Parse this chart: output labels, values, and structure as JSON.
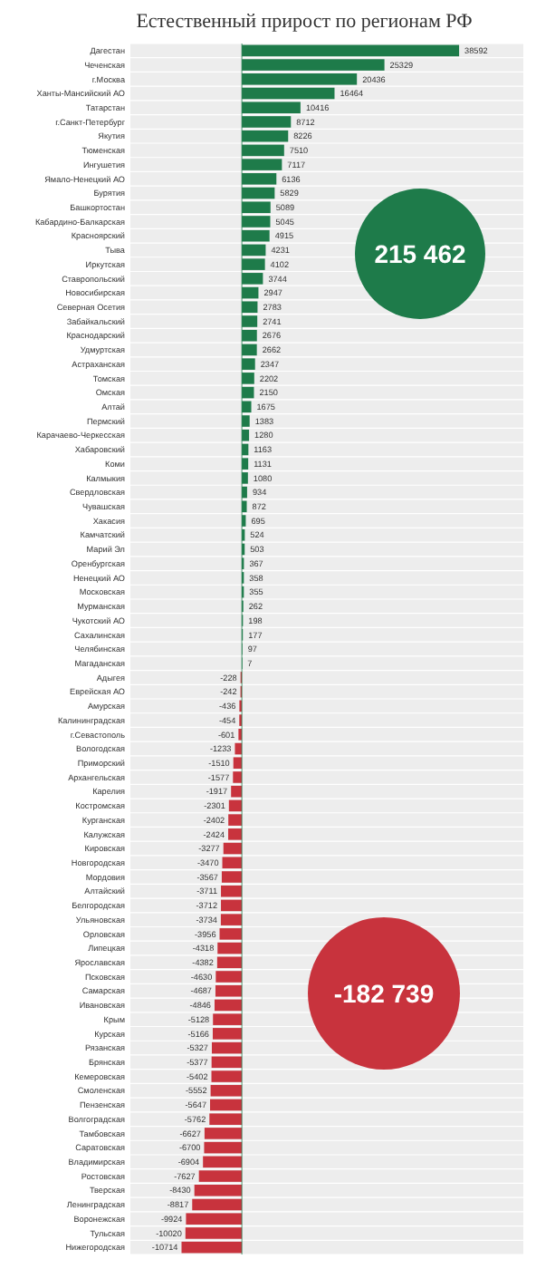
{
  "chart_data": {
    "type": "bar",
    "orientation": "horizontal",
    "title": "Естественный прирост по регионам РФ",
    "categories": [
      "Дагестан",
      "Чеченская",
      "г.Москва",
      "Ханты-Мансийский АО",
      "Татарстан",
      "г.Санкт-Петербург",
      "Якутия",
      "Тюменская",
      "Ингушетия",
      "Ямало-Ненецкий АО",
      "Бурятия",
      "Башкортостан",
      "Кабардино-Балкарская",
      "Красноярский",
      "Тыва",
      "Иркутская",
      "Ставропольский",
      "Новосибирская",
      "Северная Осетия",
      "Забайкальский",
      "Краснодарский",
      "Удмуртская",
      "Астраханская",
      "Томская",
      "Омская",
      "Алтай",
      "Пермский",
      "Карачаево-Черкесская",
      "Хабаровский",
      "Коми",
      "Калмыкия",
      "Свердловская",
      "Чувашская",
      "Хакасия",
      "Камчатский",
      "Марий Эл",
      "Оренбургская",
      "Ненецкий АО",
      "Московская",
      "Мурманская",
      "Чукотский АО",
      "Сахалинская",
      "Челябинская",
      "Магаданская",
      "Адыгея",
      "Еврейская АО",
      "Амурская",
      "Калининградская",
      "г.Севастополь",
      "Вологодская",
      "Приморский",
      "Архангельская",
      "Карелия",
      "Костромская",
      "Курганская",
      "Калужская",
      "Кировская",
      "Новгородская",
      "Мордовия",
      "Алтайский",
      "Белгородская",
      "Ульяновская",
      "Орловская",
      "Липецкая",
      "Ярославская",
      "Псковская",
      "Самарская",
      "Ивановская",
      "Крым",
      "Курская",
      "Рязанская",
      "Брянская",
      "Кемеровская",
      "Смоленская",
      "Пензенская",
      "Волгоградская",
      "Тамбовская",
      "Саратовская",
      "Владимирская",
      "Ростовская",
      "Тверская",
      "Ленинградская",
      "Воронежская",
      "Тульская",
      "Нижегородская"
    ],
    "values": [
      38592,
      25329,
      20436,
      16464,
      10416,
      8712,
      8226,
      7510,
      7117,
      6136,
      5829,
      5089,
      5045,
      4915,
      4231,
      4102,
      3744,
      2947,
      2783,
      2741,
      2676,
      2662,
      2347,
      2202,
      2150,
      1675,
      1383,
      1280,
      1163,
      1131,
      1080,
      934,
      872,
      695,
      524,
      503,
      367,
      358,
      355,
      262,
      198,
      177,
      97,
      7,
      -228,
      -242,
      -436,
      -454,
      -601,
      -1233,
      -1510,
      -1577,
      -1917,
      -2301,
      -2402,
      -2424,
      -3277,
      -3470,
      -3567,
      -3711,
      -3712,
      -3734,
      -3956,
      -4318,
      -4382,
      -4630,
      -4687,
      -4846,
      -5128,
      -5166,
      -5327,
      -5377,
      -5402,
      -5552,
      -5647,
      -5762,
      -6627,
      -6700,
      -6904,
      -7627,
      -8430,
      -8817,
      -9924,
      -10020,
      -10714
    ],
    "colors": [
      "#1e7b4a",
      "#1e7b4a",
      "#1e7b4a",
      "#1e7b4a",
      "#1e7b4a",
      "#1e7b4a",
      "#1e7b4a",
      "#1e7b4a",
      "#1e7b4a",
      "#1e7b4a",
      "#1e7b4a",
      "#1e7b4a",
      "#1e7b4a",
      "#1e7b4a",
      "#1e7b4a",
      "#1e7b4a",
      "#1e7b4a",
      "#1e7b4a",
      "#1e7b4a",
      "#1e7b4a",
      "#1e7b4a",
      "#1e7b4a",
      "#1e7b4a",
      "#1e7b4a",
      "#1e7b4a",
      "#1e7b4a",
      "#1e7b4a",
      "#1e7b4a",
      "#1e7b4a",
      "#1e7b4a",
      "#1e7b4a",
      "#1e7b4a",
      "#1e7b4a",
      "#1e7b4a",
      "#1e7b4a",
      "#1e7b4a",
      "#1e7b4a",
      "#1e7b4a",
      "#1e7b4a",
      "#1e7b4a",
      "#1e7b4a",
      "#1e7b4a",
      "#1e7b4a",
      "#1e7b4a",
      "#c8333d",
      "#c8333d",
      "#c8333d",
      "#c8333d",
      "#c8333d",
      "#c8333d",
      "#c8333d",
      "#c8333d",
      "#c8333d",
      "#c8333d",
      "#c8333d",
      "#c8333d",
      "#c8333d",
      "#c8333d",
      "#c8333d",
      "#c8333d",
      "#c8333d",
      "#c8333d",
      "#c8333d",
      "#c8333d",
      "#c8333d",
      "#c8333d",
      "#c8333d",
      "#c8333d",
      "#c8333d",
      "#c8333d",
      "#c8333d",
      "#c8333d",
      "#c8333d",
      "#c8333d",
      "#c8333d",
      "#c8333d",
      "#c8333d",
      "#c8333d",
      "#c8333d",
      "#c8333d",
      "#c8333d",
      "#c8333d",
      "#c8333d",
      "#c8333d",
      "#c8333d"
    ],
    "xlim": [
      -19800,
      50000
    ],
    "ref_lines": [
      {
        "axis": "x",
        "value": 0,
        "color": "#1e7b4a"
      }
    ],
    "tick_labels": "y",
    "data_labels": true,
    "annotations": [
      "215 462",
      "-182 739"
    ]
  }
}
